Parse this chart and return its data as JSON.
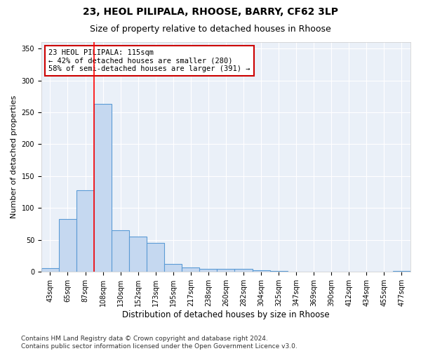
{
  "title1": "23, HEOL PILIPALA, RHOOSE, BARRY, CF62 3LP",
  "title2": "Size of property relative to detached houses in Rhoose",
  "xlabel": "Distribution of detached houses by size in Rhoose",
  "ylabel": "Number of detached properties",
  "categories": [
    "43sqm",
    "65sqm",
    "87sqm",
    "108sqm",
    "130sqm",
    "152sqm",
    "173sqm",
    "195sqm",
    "217sqm",
    "238sqm",
    "260sqm",
    "282sqm",
    "304sqm",
    "325sqm",
    "347sqm",
    "369sqm",
    "390sqm",
    "412sqm",
    "434sqm",
    "455sqm",
    "477sqm"
  ],
  "values": [
    6,
    83,
    128,
    263,
    65,
    55,
    45,
    13,
    7,
    5,
    5,
    5,
    3,
    2,
    0,
    0,
    0,
    0,
    0,
    0,
    2
  ],
  "bar_color": "#c5d8f0",
  "bar_edge_color": "#5b9bd5",
  "bar_edge_width": 0.8,
  "red_line_x": 3.5,
  "annotation_text": "23 HEOL PILIPALA: 115sqm\n← 42% of detached houses are smaller (280)\n58% of semi-detached houses are larger (391) →",
  "annotation_box_color": "#ffffff",
  "annotation_box_edge": "#cc0000",
  "ylim": [
    0,
    360
  ],
  "yticks": [
    0,
    50,
    100,
    150,
    200,
    250,
    300,
    350
  ],
  "background_color": "#eaf0f8",
  "grid_color": "#ffffff",
  "footer": "Contains HM Land Registry data © Crown copyright and database right 2024.\nContains public sector information licensed under the Open Government Licence v3.0.",
  "title1_fontsize": 10,
  "title2_fontsize": 9,
  "xlabel_fontsize": 8.5,
  "ylabel_fontsize": 8,
  "tick_fontsize": 7,
  "annotation_fontsize": 7.5,
  "footer_fontsize": 6.5
}
